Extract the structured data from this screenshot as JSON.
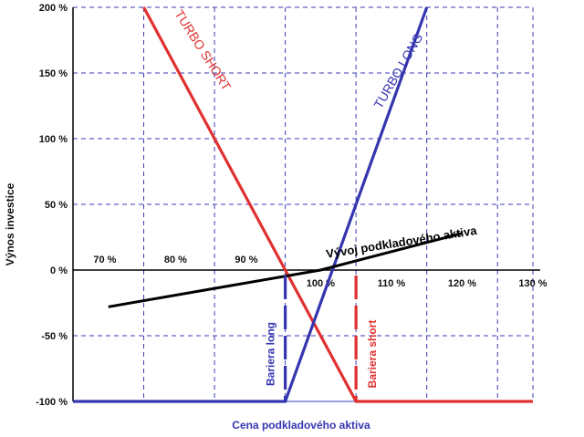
{
  "chart_data": {
    "type": "line",
    "xlabel": "Cena  podkladového aktiva",
    "ylabel": "Výnos investice",
    "x_ticks": [
      "70 %",
      "80 %",
      "90 %",
      "100 %",
      "110 %",
      "120 %",
      "130 %"
    ],
    "y_ticks": [
      "200 %",
      "150 %",
      "100 %",
      "50 %",
      "0 %",
      "-50 %",
      "-100 %"
    ],
    "xlim": [
      65,
      130
    ],
    "ylim": [
      -100,
      200
    ],
    "grid": true,
    "series": [
      {
        "name": "TURBO SHORT",
        "color": "#e03030",
        "points": [
          [
            65,
            -100
          ],
          [
            75,
            -100
          ]
        ],
        "full": [
          [
            75,
            200
          ],
          [
            105,
            -100
          ],
          [
            130,
            -100
          ]
        ]
      },
      {
        "name": "TURBO LONG",
        "color": "#3535b0",
        "full": [
          [
            65,
            -100
          ],
          [
            95,
            -100
          ],
          [
            115,
            200
          ]
        ]
      },
      {
        "name": "Vývoj podkladového aktiva",
        "color": "#000000",
        "full": [
          [
            70,
            -28
          ],
          [
            100,
            0
          ],
          [
            120,
            28
          ]
        ]
      }
    ],
    "annotations": [
      {
        "text": "Bariera long",
        "x": 95,
        "color": "#3535b0"
      },
      {
        "text": "Bariera short",
        "x": 105,
        "color": "#e03030"
      }
    ]
  }
}
